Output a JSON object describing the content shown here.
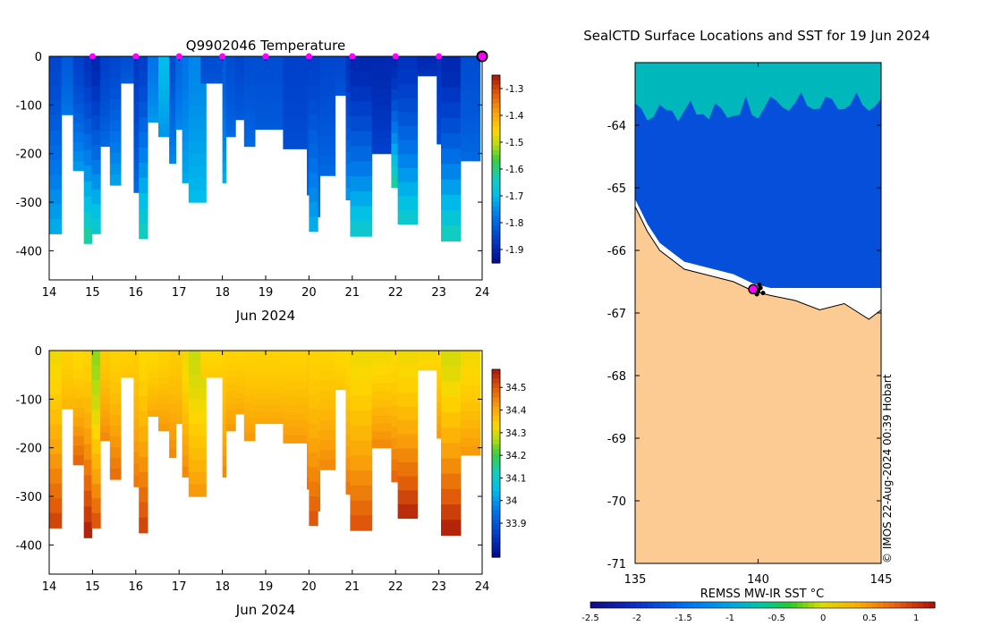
{
  "chart_data": [
    {
      "type": "heatmap",
      "title": "Q9902046  Temperature",
      "xlabel": "Jun 2024",
      "ylabel": "",
      "xlim": [
        14,
        24
      ],
      "ylim": [
        -460,
        0
      ],
      "x_ticks": [
        "14",
        "15",
        "16",
        "17",
        "18",
        "19",
        "20",
        "21",
        "22",
        "23",
        "24"
      ],
      "y_ticks": [
        "0",
        "-100",
        "-200",
        "-300",
        "-400"
      ],
      "surface_markers_x": [
        15,
        16,
        17,
        18,
        19,
        20,
        21,
        22,
        23
      ],
      "last_marker_x": 24,
      "colorbar": {
        "range": [
          -1.95,
          -1.25
        ],
        "ticks": [
          "-1.3",
          "-1.4",
          "-1.5",
          "-1.6",
          "-1.7",
          "-1.8",
          "-1.9"
        ],
        "tick_values": [
          -1.3,
          -1.4,
          -1.5,
          -1.6,
          -1.7,
          -1.8,
          -1.9
        ]
      },
      "profiles": [
        {
          "t": 14.0,
          "w": 0.28,
          "depth": 365,
          "surf": -1.85,
          "bot": -1.72
        },
        {
          "t": 14.28,
          "w": 0.27,
          "depth": 120,
          "surf": -1.82,
          "bot": -1.78
        },
        {
          "t": 14.55,
          "w": 0.25,
          "depth": 235,
          "surf": -1.86,
          "bot": -1.74
        },
        {
          "t": 14.8,
          "w": 0.18,
          "depth": 385,
          "surf": -1.88,
          "bot": -1.62
        },
        {
          "t": 14.98,
          "w": 0.2,
          "depth": 365,
          "surf": -1.9,
          "bot": -1.66
        },
        {
          "t": 15.18,
          "w": 0.22,
          "depth": 185,
          "surf": -1.86,
          "bot": -1.8
        },
        {
          "t": 15.4,
          "w": 0.25,
          "depth": 265,
          "surf": -1.85,
          "bot": -1.73
        },
        {
          "t": 15.65,
          "w": 0.3,
          "depth": 55,
          "surf": -1.84,
          "bot": -1.82
        },
        {
          "t": 15.95,
          "w": 0.12,
          "depth": 280,
          "surf": -1.87,
          "bot": -1.8
        },
        {
          "t": 16.07,
          "w": 0.2,
          "depth": 375,
          "surf": -1.86,
          "bot": -1.64
        },
        {
          "t": 16.27,
          "w": 0.25,
          "depth": 135,
          "surf": -1.78,
          "bot": -1.74
        },
        {
          "t": 16.52,
          "w": 0.25,
          "depth": 165,
          "surf": -1.7,
          "bot": -1.74
        },
        {
          "t": 16.77,
          "w": 0.15,
          "depth": 220,
          "surf": -1.84,
          "bot": -1.76
        },
        {
          "t": 16.92,
          "w": 0.15,
          "depth": 150,
          "surf": -1.8,
          "bot": -1.76
        },
        {
          "t": 17.07,
          "w": 0.15,
          "depth": 260,
          "surf": -1.78,
          "bot": -1.72
        },
        {
          "t": 17.22,
          "w": 0.4,
          "depth": 300,
          "surf": -1.76,
          "bot": -1.7
        },
        {
          "t": 17.5,
          "w": 0.5,
          "depth": 55,
          "surf": -1.84,
          "bot": -1.83
        },
        {
          "t": 18.0,
          "w": 0.08,
          "depth": 260,
          "surf": -1.82,
          "bot": -1.72
        },
        {
          "t": 18.08,
          "w": 0.22,
          "depth": 165,
          "surf": -1.84,
          "bot": -1.8
        },
        {
          "t": 18.3,
          "w": 0.2,
          "depth": 130,
          "surf": -1.85,
          "bot": -1.82
        },
        {
          "t": 18.5,
          "w": 0.25,
          "depth": 185,
          "surf": -1.84,
          "bot": -1.8
        },
        {
          "t": 18.75,
          "w": 0.65,
          "depth": 150,
          "surf": -1.84,
          "bot": -1.82
        },
        {
          "t": 19.4,
          "w": 0.55,
          "depth": 190,
          "surf": -1.86,
          "bot": -1.84
        },
        {
          "t": 19.95,
          "w": 0.05,
          "depth": 285,
          "surf": -1.86,
          "bot": -1.8
        },
        {
          "t": 20.0,
          "w": 0.2,
          "depth": 360,
          "surf": -1.86,
          "bot": -1.72
        },
        {
          "t": 20.2,
          "w": 0.05,
          "depth": 330,
          "surf": -1.86,
          "bot": -1.78
        },
        {
          "t": 20.25,
          "w": 0.35,
          "depth": 245,
          "surf": -1.85,
          "bot": -1.8
        },
        {
          "t": 20.6,
          "w": 0.25,
          "depth": 80,
          "surf": -1.85,
          "bot": -1.83
        },
        {
          "t": 20.85,
          "w": 0.1,
          "depth": 295,
          "surf": -1.88,
          "bot": -1.74
        },
        {
          "t": 20.95,
          "w": 0.5,
          "depth": 370,
          "surf": -1.9,
          "bot": -1.66
        },
        {
          "t": 21.45,
          "w": 0.45,
          "depth": 200,
          "surf": -1.9,
          "bot": -1.86
        },
        {
          "t": 21.9,
          "w": 0.15,
          "depth": 270,
          "surf": -1.9,
          "bot": -1.62
        },
        {
          "t": 22.05,
          "w": 0.45,
          "depth": 345,
          "surf": -1.88,
          "bot": -1.66
        },
        {
          "t": 22.5,
          "w": 0.5,
          "depth": 40,
          "surf": -1.9,
          "bot": -1.88
        },
        {
          "t": 22.95,
          "w": 0.1,
          "depth": 180,
          "surf": -1.88,
          "bot": -1.84
        },
        {
          "t": 23.05,
          "w": 0.45,
          "depth": 380,
          "surf": -1.9,
          "bot": -1.64
        },
        {
          "t": 23.5,
          "w": 0.45,
          "depth": 215,
          "surf": -1.84,
          "bot": -1.8
        }
      ]
    },
    {
      "type": "heatmap",
      "title": "",
      "xlabel": "Jun 2024",
      "ylabel": "",
      "xlim": [
        14,
        24
      ],
      "ylim": [
        -460,
        0
      ],
      "x_ticks": [
        "14",
        "15",
        "16",
        "17",
        "18",
        "19",
        "20",
        "21",
        "22",
        "23",
        "24"
      ],
      "y_ticks": [
        "0",
        "-100",
        "-200",
        "-300",
        "-400"
      ],
      "colorbar": {
        "range": [
          33.75,
          34.58
        ],
        "ticks": [
          "34.5",
          "34.4",
          "34.3",
          "34.2",
          "34.1",
          "34",
          "33.9"
        ],
        "tick_values": [
          34.5,
          34.4,
          34.3,
          34.2,
          34.1,
          34.0,
          33.9
        ]
      },
      "profiles": [
        {
          "t": 14.0,
          "w": 0.28,
          "depth": 365,
          "surf": 34.32,
          "bot": 34.52
        },
        {
          "t": 14.28,
          "w": 0.27,
          "depth": 120,
          "surf": 34.34,
          "bot": 34.38
        },
        {
          "t": 14.55,
          "w": 0.25,
          "depth": 235,
          "surf": 34.33,
          "bot": 34.48
        },
        {
          "t": 14.8,
          "w": 0.18,
          "depth": 385,
          "surf": 34.34,
          "bot": 34.56
        },
        {
          "t": 14.98,
          "w": 0.2,
          "depth": 365,
          "surf": 34.25,
          "bot": 34.5
        },
        {
          "t": 15.18,
          "w": 0.22,
          "depth": 185,
          "surf": 34.35,
          "bot": 34.44
        },
        {
          "t": 15.4,
          "w": 0.25,
          "depth": 265,
          "surf": 34.34,
          "bot": 34.47
        },
        {
          "t": 15.65,
          "w": 0.3,
          "depth": 55,
          "surf": 34.34,
          "bot": 34.36
        },
        {
          "t": 15.95,
          "w": 0.12,
          "depth": 280,
          "surf": 34.35,
          "bot": 34.46
        },
        {
          "t": 16.07,
          "w": 0.2,
          "depth": 375,
          "surf": 34.33,
          "bot": 34.52
        },
        {
          "t": 16.27,
          "w": 0.25,
          "depth": 135,
          "surf": 34.33,
          "bot": 34.4
        },
        {
          "t": 16.52,
          "w": 0.25,
          "depth": 165,
          "surf": 34.34,
          "bot": 34.42
        },
        {
          "t": 16.77,
          "w": 0.15,
          "depth": 220,
          "surf": 34.35,
          "bot": 34.44
        },
        {
          "t": 16.92,
          "w": 0.15,
          "depth": 150,
          "surf": 34.35,
          "bot": 34.4
        },
        {
          "t": 17.07,
          "w": 0.15,
          "depth": 260,
          "surf": 34.32,
          "bot": 34.44
        },
        {
          "t": 17.22,
          "w": 0.4,
          "depth": 300,
          "surf": 34.29,
          "bot": 34.42
        },
        {
          "t": 17.5,
          "w": 0.5,
          "depth": 55,
          "surf": 34.33,
          "bot": 34.35
        },
        {
          "t": 18.0,
          "w": 0.08,
          "depth": 260,
          "surf": 34.34,
          "bot": 34.44
        },
        {
          "t": 18.08,
          "w": 0.22,
          "depth": 165,
          "surf": 34.34,
          "bot": 34.42
        },
        {
          "t": 18.3,
          "w": 0.2,
          "depth": 130,
          "surf": 34.34,
          "bot": 34.4
        },
        {
          "t": 18.5,
          "w": 0.25,
          "depth": 185,
          "surf": 34.34,
          "bot": 34.42
        },
        {
          "t": 18.75,
          "w": 0.65,
          "depth": 150,
          "surf": 34.34,
          "bot": 34.4
        },
        {
          "t": 19.4,
          "w": 0.55,
          "depth": 190,
          "surf": 34.34,
          "bot": 34.42
        },
        {
          "t": 19.95,
          "w": 0.05,
          "depth": 285,
          "surf": 34.35,
          "bot": 34.46
        },
        {
          "t": 20.0,
          "w": 0.2,
          "depth": 360,
          "surf": 34.34,
          "bot": 34.5
        },
        {
          "t": 20.2,
          "w": 0.05,
          "depth": 330,
          "surf": 34.34,
          "bot": 34.48
        },
        {
          "t": 20.25,
          "w": 0.35,
          "depth": 245,
          "surf": 34.34,
          "bot": 34.44
        },
        {
          "t": 20.6,
          "w": 0.25,
          "depth": 80,
          "surf": 34.33,
          "bot": 34.36
        },
        {
          "t": 20.85,
          "w": 0.1,
          "depth": 295,
          "surf": 34.33,
          "bot": 34.46
        },
        {
          "t": 20.95,
          "w": 0.5,
          "depth": 370,
          "surf": 34.32,
          "bot": 34.5
        },
        {
          "t": 21.45,
          "w": 0.45,
          "depth": 200,
          "surf": 34.32,
          "bot": 34.44
        },
        {
          "t": 21.9,
          "w": 0.15,
          "depth": 270,
          "surf": 34.33,
          "bot": 34.48
        },
        {
          "t": 22.05,
          "w": 0.45,
          "depth": 345,
          "surf": 34.32,
          "bot": 34.55
        },
        {
          "t": 22.5,
          "w": 0.5,
          "depth": 40,
          "surf": 34.32,
          "bot": 34.34
        },
        {
          "t": 22.95,
          "w": 0.1,
          "depth": 180,
          "surf": 34.33,
          "bot": 34.42
        },
        {
          "t": 23.05,
          "w": 0.45,
          "depth": 380,
          "surf": 34.3,
          "bot": 34.56
        },
        {
          "t": 23.5,
          "w": 0.45,
          "depth": 215,
          "surf": 34.32,
          "bot": 34.42
        }
      ]
    },
    {
      "type": "heatmap",
      "title": "SealCTD Surface Locations and SST for 19 Jun 2024",
      "xlabel": "",
      "ylabel": "",
      "xlim": [
        135,
        145
      ],
      "ylim": [
        -71,
        -63
      ],
      "x_ticks": [
        "135",
        "140",
        "145"
      ],
      "y_ticks": [
        "-64",
        "-65",
        "-66",
        "-67",
        "-68",
        "-69",
        "-70",
        "-71"
      ],
      "colorbar_label": "REMSS MW-IR SST °C",
      "colorbar": {
        "range": [
          -2.5,
          1.2
        ],
        "ticks": [
          "-2.5",
          "-2",
          "-1.5",
          "-1",
          "-0.5",
          "0",
          "0.5",
          "1"
        ],
        "tick_values": [
          -2.5,
          -2,
          -1.5,
          -1,
          -0.5,
          0,
          0.5,
          1
        ]
      },
      "credit": "© IMOS 22-Aug-2024 00:39 Hobart",
      "sst_values": {
        "open_ocean": -1.75,
        "ice_edge": -0.8
      },
      "coast": [
        [
          135,
          -65.3
        ],
        [
          135.5,
          -65.7
        ],
        [
          136,
          -66.0
        ],
        [
          137,
          -66.3
        ],
        [
          138,
          -66.4
        ],
        [
          139,
          -66.5
        ],
        [
          139.8,
          -66.65
        ],
        [
          140.5,
          -66.72
        ],
        [
          141.5,
          -66.8
        ],
        [
          142.5,
          -66.95
        ],
        [
          143.5,
          -66.85
        ],
        [
          144.5,
          -67.1
        ],
        [
          145,
          -66.95
        ]
      ],
      "locations": [
        [
          139.8,
          -66.62
        ],
        [
          139.9,
          -66.6
        ],
        [
          140.0,
          -66.65
        ],
        [
          140.1,
          -66.6
        ],
        [
          140.2,
          -66.68
        ],
        [
          140.05,
          -66.55
        ],
        [
          139.95,
          -66.7
        ]
      ],
      "current_location": [
        139.8,
        -66.62
      ]
    }
  ]
}
